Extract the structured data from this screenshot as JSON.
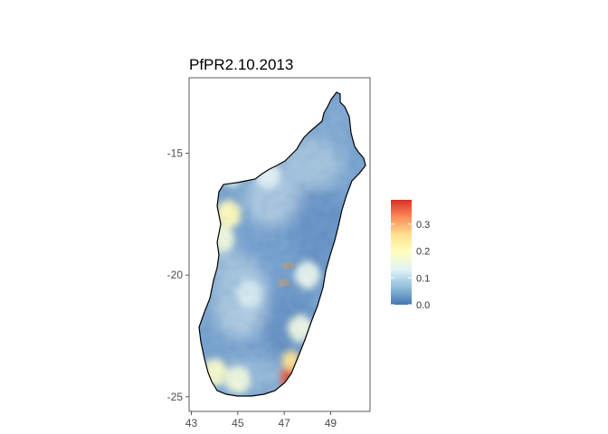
{
  "figure": {
    "title": "PfPR2.10.2013"
  },
  "chart_data": {
    "type": "heatmap",
    "title": "PfPR2.10.2013",
    "xlabel": "",
    "ylabel": "",
    "x_axis": {
      "ticks": [
        "43",
        "45",
        "47",
        "49"
      ],
      "tick_values": [
        43,
        45,
        47,
        49
      ],
      "range": [
        42.9,
        50.7
      ]
    },
    "y_axis": {
      "ticks": [
        "-15",
        "-20",
        "-25"
      ],
      "tick_values": [
        -15,
        -20,
        -25
      ],
      "range": [
        -25.6,
        -11.9
      ]
    },
    "grid": false,
    "legend": {
      "placement": "right",
      "ticks": [
        "0.0",
        "0.1",
        "0.2",
        "0.3"
      ],
      "tick_values": [
        0.0,
        0.1,
        0.2,
        0.3
      ],
      "range": [
        0.0,
        0.39
      ],
      "colors": [
        "#4575b4",
        "#91bfdb",
        "#e0f3f8",
        "#ffffbf",
        "#fee090",
        "#fc8d59",
        "#d73027"
      ]
    },
    "missing_color": "#9a9a9a",
    "hotspots": [
      {
        "lon": 47.2,
        "lat": -24.2,
        "value": 0.36
      },
      {
        "lon": 47.3,
        "lat": -23.5,
        "value": 0.26
      },
      {
        "lon": 44.6,
        "lat": -17.5,
        "value": 0.2
      },
      {
        "lon": 44.0,
        "lat": -24.0,
        "value": 0.18
      },
      {
        "lon": 45.0,
        "lat": -24.3,
        "value": 0.16
      },
      {
        "lon": 44.3,
        "lat": -18.5,
        "value": 0.16
      },
      {
        "lon": 47.7,
        "lat": -22.2,
        "value": 0.15
      },
      {
        "lon": 48.0,
        "lat": -20.0,
        "value": 0.14
      },
      {
        "lon": 44.7,
        "lat": -15.8,
        "value": 0.14
      },
      {
        "lon": 46.3,
        "lat": -15.9,
        "value": 0.13
      },
      {
        "lon": 45.5,
        "lat": -20.8,
        "value": 0.12
      }
    ],
    "missing_areas": [
      {
        "lon": 47.2,
        "lat": -19.6
      },
      {
        "lon": 47.0,
        "lat": -20.3
      }
    ]
  }
}
